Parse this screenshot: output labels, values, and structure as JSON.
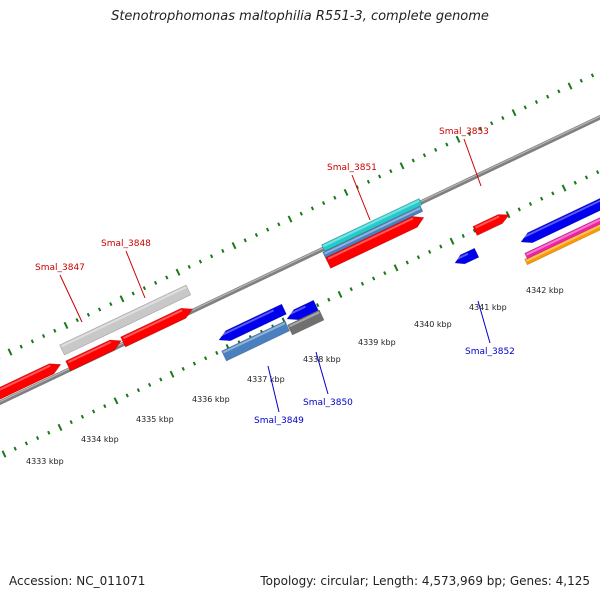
{
  "title": "Stenotrophomonas maltophilia R551-3, complete genome",
  "footer": {
    "accession": "Accession: NC_011071",
    "topology": "Topology: circular; Length: 4,573,969 bp; Genes: 4,125"
  },
  "colors": {
    "backbone": "#808080",
    "minor_tick": "#1a7a1a",
    "forward_label": "#cc0000",
    "reverse_label": "#0000cc",
    "forward_gene": "#ff0000",
    "reverse_gene": "#0000ee",
    "grey_feature": "#c8c8c8",
    "dark_grey_feature": "#707070",
    "cyan_feature": "#22cccc",
    "steel_feature": "#4a7fc0",
    "magenta_feature": "#ee22aa",
    "orange_feature": "#ff9900"
  },
  "scale_labels": [
    "4333 kbp",
    "4334 kbp",
    "4335 kbp",
    "4336 kbp",
    "4337 kbp",
    "4338 kbp",
    "4339 kbp",
    "4340 kbp",
    "4341 kbp",
    "4342 kbp"
  ],
  "gene_labels": [
    {
      "text": "Smal_3847",
      "strand": "forward"
    },
    {
      "text": "Smal_3848",
      "strand": "forward"
    },
    {
      "text": "Smal_3851",
      "strand": "forward"
    },
    {
      "text": "Smal_3853",
      "strand": "forward"
    },
    {
      "text": "Smal_3852",
      "strand": "reverse"
    },
    {
      "text": "Smal_3849",
      "strand": "reverse"
    },
    {
      "text": "Smal_3850",
      "strand": "reverse"
    }
  ]
}
